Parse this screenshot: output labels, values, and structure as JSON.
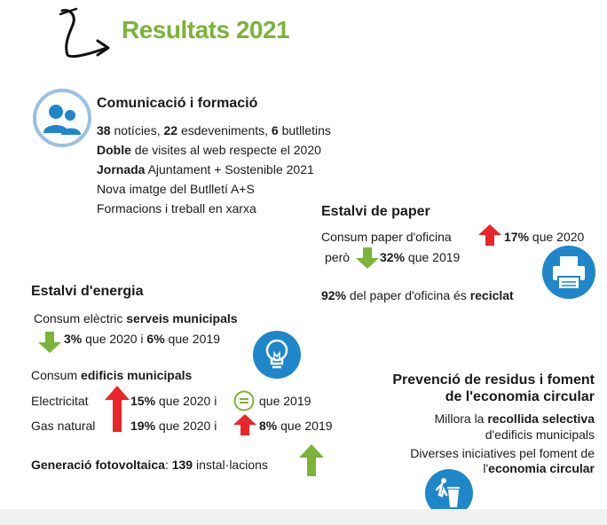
{
  "title": "Resultats 2021",
  "communication": {
    "heading": "Comunicació i formació",
    "line1": {
      "n1": "38",
      "t1": " notícies, ",
      "n2": "22",
      "t2": " esdeveniments, ",
      "n3": "6",
      "t3": " butlletins"
    },
    "line2": {
      "b": "Doble",
      "t": " de visites al web respecte el 2020"
    },
    "line3": {
      "b": "Jornada",
      "t": " Ajuntament + Sostenible 2021"
    },
    "line4": "Nova imatge del Butlletí A+S",
    "line5": "Formacions i treball en xarxa"
  },
  "paper": {
    "heading": "Estalvi de paper",
    "line1": {
      "t": "Consum paper d'oficina",
      "b": "17%",
      "t2": " que 2020"
    },
    "line2": {
      "t": "però",
      "b": "32%",
      "t2": " que 2019"
    },
    "line3": {
      "b": "92%",
      "t": " del paper d'oficina és ",
      "b2": "reciclat"
    }
  },
  "energy": {
    "heading": "Estalvi d'energia",
    "line1": {
      "t": "Consum elèctric ",
      "b": "serveis municipals"
    },
    "line2": {
      "b1": "3%",
      "t1": " que 2020 i ",
      "b2": "6%",
      "t2": " que 2019"
    },
    "line3": {
      "t": "Consum ",
      "b": "edificis municipals"
    },
    "line4": {
      "t": "Electricitat",
      "b": "15%",
      "t1": " que 2020 i",
      "t2": "que 2019"
    },
    "line5": {
      "t": "Gas natural",
      "b": "19%",
      "t1": " que 2020 i",
      "b2": "8%",
      "t2": " que 2019"
    },
    "line6": {
      "b": "Generació fotovoltaica",
      "t": ": ",
      "b2": "139",
      "t2": " instal·lacions"
    }
  },
  "waste": {
    "heading1": "Prevenció de residus i foment",
    "heading2": "de l'economia circular",
    "line1": {
      "t": "Millora la ",
      "b": "recollida selectiva"
    },
    "line2": "d'edificis municipals",
    "line3": "Diverses iniciatives pel foment de",
    "line4": {
      "t": "l'",
      "b": "economia circular"
    }
  },
  "colors": {
    "green": "#7cb33a",
    "red": "#e8262a",
    "blue": "#1f87c9"
  },
  "icons": [
    "arrow-doodle-icon",
    "people-icon",
    "printer-icon",
    "light-bulb-icon",
    "equal-icon",
    "trash-bin-icon",
    "arrow-up-icon",
    "arrow-down-icon"
  ]
}
